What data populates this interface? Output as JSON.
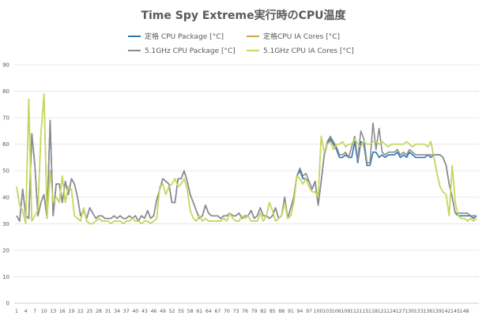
{
  "chart_data": {
    "type": "line",
    "title": "Time Spy Extreme実行時のCPU温度",
    "xlabel": "",
    "ylabel": "",
    "ylim": [
      0,
      90
    ],
    "yticks": [
      0,
      10,
      20,
      30,
      40,
      50,
      60,
      70,
      80,
      90
    ],
    "grid": true,
    "legend_position": "top",
    "x_tick_labels": [
      "1",
      "4",
      "7",
      "10",
      "13",
      "16",
      "19",
      "22",
      "25",
      "28",
      "31",
      "34",
      "37",
      "40",
      "43",
      "46",
      "49",
      "52",
      "55",
      "58",
      "61",
      "64",
      "67",
      "70",
      "73",
      "76",
      "79",
      "82",
      "85",
      "88",
      "91",
      "94",
      "97",
      "100",
      "103",
      "106",
      "109",
      "112",
      "115",
      "118",
      "121",
      "124",
      "127",
      "130",
      "133",
      "136",
      "139",
      "142",
      "145",
      "148"
    ],
    "series": [
      {
        "name": "定格 CPU Package [°C]",
        "color": "#2e75b6",
        "values": [
          33,
          31,
          43,
          33,
          32,
          64,
          52,
          33,
          38,
          41,
          32,
          69,
          33,
          45,
          45,
          38,
          46,
          41,
          47,
          45,
          40,
          33,
          35,
          32,
          36,
          34,
          32,
          33,
          33,
          32,
          32,
          32,
          33,
          32,
          33,
          32,
          32,
          33,
          32,
          33,
          31,
          33,
          32,
          35,
          32,
          33,
          39,
          43,
          47,
          46,
          45,
          38,
          38,
          47,
          47,
          50,
          46,
          41,
          38,
          35,
          32,
          33,
          37,
          34,
          33,
          33,
          33,
          32,
          33,
          33,
          34,
          33,
          33,
          34,
          32,
          33,
          33,
          35,
          32,
          33,
          36,
          33,
          33,
          32,
          33,
          36,
          32,
          33,
          40,
          32,
          36,
          40,
          48,
          50,
          47,
          47,
          46,
          43,
          46,
          37,
          46,
          56,
          60,
          62,
          60,
          58,
          55,
          55,
          56,
          55,
          55,
          61,
          53,
          61,
          60,
          52,
          52,
          57,
          57,
          55,
          56,
          55,
          56,
          56,
          56,
          57,
          55,
          56,
          55,
          57,
          56,
          55,
          55,
          55,
          55,
          56,
          55,
          56,
          56,
          56,
          55,
          52,
          45,
          40,
          34,
          33,
          33,
          33,
          33,
          33,
          32,
          33
        ]
      },
      {
        "name": "定格CPU IA Cores [°C]",
        "color": "#c9a84a",
        "values": [
          44,
          37,
          35,
          30,
          77,
          31,
          33,
          35,
          64,
          79,
          32,
          50,
          38,
          40,
          38,
          48,
          38,
          44,
          43,
          33,
          32,
          31,
          36,
          31,
          30,
          30,
          31,
          32,
          31,
          31,
          31,
          30,
          31,
          31,
          31,
          30,
          31,
          31,
          32,
          31,
          31,
          30,
          31,
          31,
          30,
          31,
          32,
          44,
          45,
          41,
          44,
          45,
          47,
          44,
          45,
          47,
          43,
          35,
          32,
          31,
          33,
          31,
          32,
          31,
          31,
          31,
          31,
          31,
          32,
          31,
          34,
          32,
          31,
          31,
          33,
          32,
          33,
          31,
          31,
          31,
          34,
          31,
          33,
          38,
          35,
          31,
          32,
          33,
          38,
          32,
          33,
          38,
          48,
          47,
          45,
          47,
          44,
          42,
          42,
          40,
          63,
          57,
          60,
          61,
          58,
          60,
          60,
          61,
          59,
          60,
          60,
          62,
          60,
          59,
          61,
          60,
          60,
          61,
          61,
          60,
          61,
          60,
          59,
          60,
          60,
          60,
          60,
          60,
          61,
          60,
          59,
          60,
          60,
          60,
          60,
          59,
          61,
          55,
          49,
          44,
          42,
          41,
          33,
          52,
          38,
          33,
          32,
          32,
          31,
          32,
          31,
          32
        ]
      },
      {
        "name": "5.1GHz CPU Package [°C]",
        "color": "#8c8c8c",
        "values": [
          33,
          31,
          43,
          33,
          32,
          64,
          52,
          33,
          38,
          41,
          32,
          69,
          33,
          45,
          45,
          38,
          46,
          41,
          47,
          45,
          40,
          33,
          35,
          32,
          36,
          34,
          32,
          33,
          33,
          32,
          32,
          32,
          33,
          32,
          33,
          32,
          32,
          33,
          32,
          33,
          31,
          33,
          32,
          35,
          32,
          33,
          39,
          43,
          47,
          46,
          45,
          38,
          38,
          47,
          47,
          50,
          46,
          41,
          38,
          35,
          32,
          33,
          37,
          34,
          33,
          33,
          33,
          32,
          33,
          33,
          34,
          33,
          33,
          34,
          32,
          33,
          33,
          35,
          32,
          33,
          36,
          33,
          33,
          32,
          33,
          36,
          32,
          33,
          40,
          32,
          36,
          40,
          48,
          51,
          48,
          49,
          46,
          43,
          46,
          37,
          46,
          56,
          61,
          63,
          61,
          59,
          56,
          56,
          57,
          55,
          59,
          63,
          54,
          65,
          62,
          53,
          53,
          68,
          58,
          66,
          57,
          56,
          57,
          57,
          57,
          58,
          56,
          57,
          56,
          58,
          57,
          56,
          56,
          56,
          56,
          56,
          56,
          56,
          56,
          56,
          55,
          52,
          45,
          40,
          34,
          34,
          34,
          34,
          34,
          33,
          33,
          33
        ]
      },
      {
        "name": "5.1GHz CPU IA Cores [°C]",
        "color": "#c5d95b",
        "values": [
          44,
          37,
          35,
          30,
          77,
          31,
          33,
          35,
          64,
          79,
          32,
          50,
          38,
          40,
          38,
          48,
          38,
          44,
          43,
          33,
          32,
          31,
          36,
          31,
          30,
          30,
          31,
          32,
          31,
          31,
          31,
          30,
          31,
          31,
          31,
          30,
          31,
          31,
          32,
          31,
          31,
          30,
          31,
          31,
          30,
          31,
          32,
          44,
          45,
          41,
          44,
          45,
          47,
          44,
          45,
          47,
          43,
          35,
          32,
          31,
          33,
          31,
          32,
          31,
          31,
          31,
          31,
          31,
          32,
          31,
          34,
          32,
          31,
          31,
          33,
          32,
          33,
          31,
          31,
          31,
          34,
          31,
          33,
          38,
          35,
          31,
          32,
          33,
          38,
          32,
          33,
          38,
          48,
          47,
          45,
          47,
          44,
          42,
          42,
          40,
          63,
          57,
          60,
          61,
          58,
          60,
          60,
          61,
          59,
          60,
          60,
          62,
          60,
          59,
          61,
          60,
          60,
          61,
          61,
          60,
          61,
          60,
          59,
          60,
          60,
          60,
          60,
          60,
          61,
          60,
          59,
          60,
          60,
          60,
          60,
          59,
          61,
          55,
          49,
          44,
          42,
          41,
          33,
          52,
          38,
          33,
          32,
          32,
          31,
          32,
          31,
          32
        ]
      }
    ]
  }
}
